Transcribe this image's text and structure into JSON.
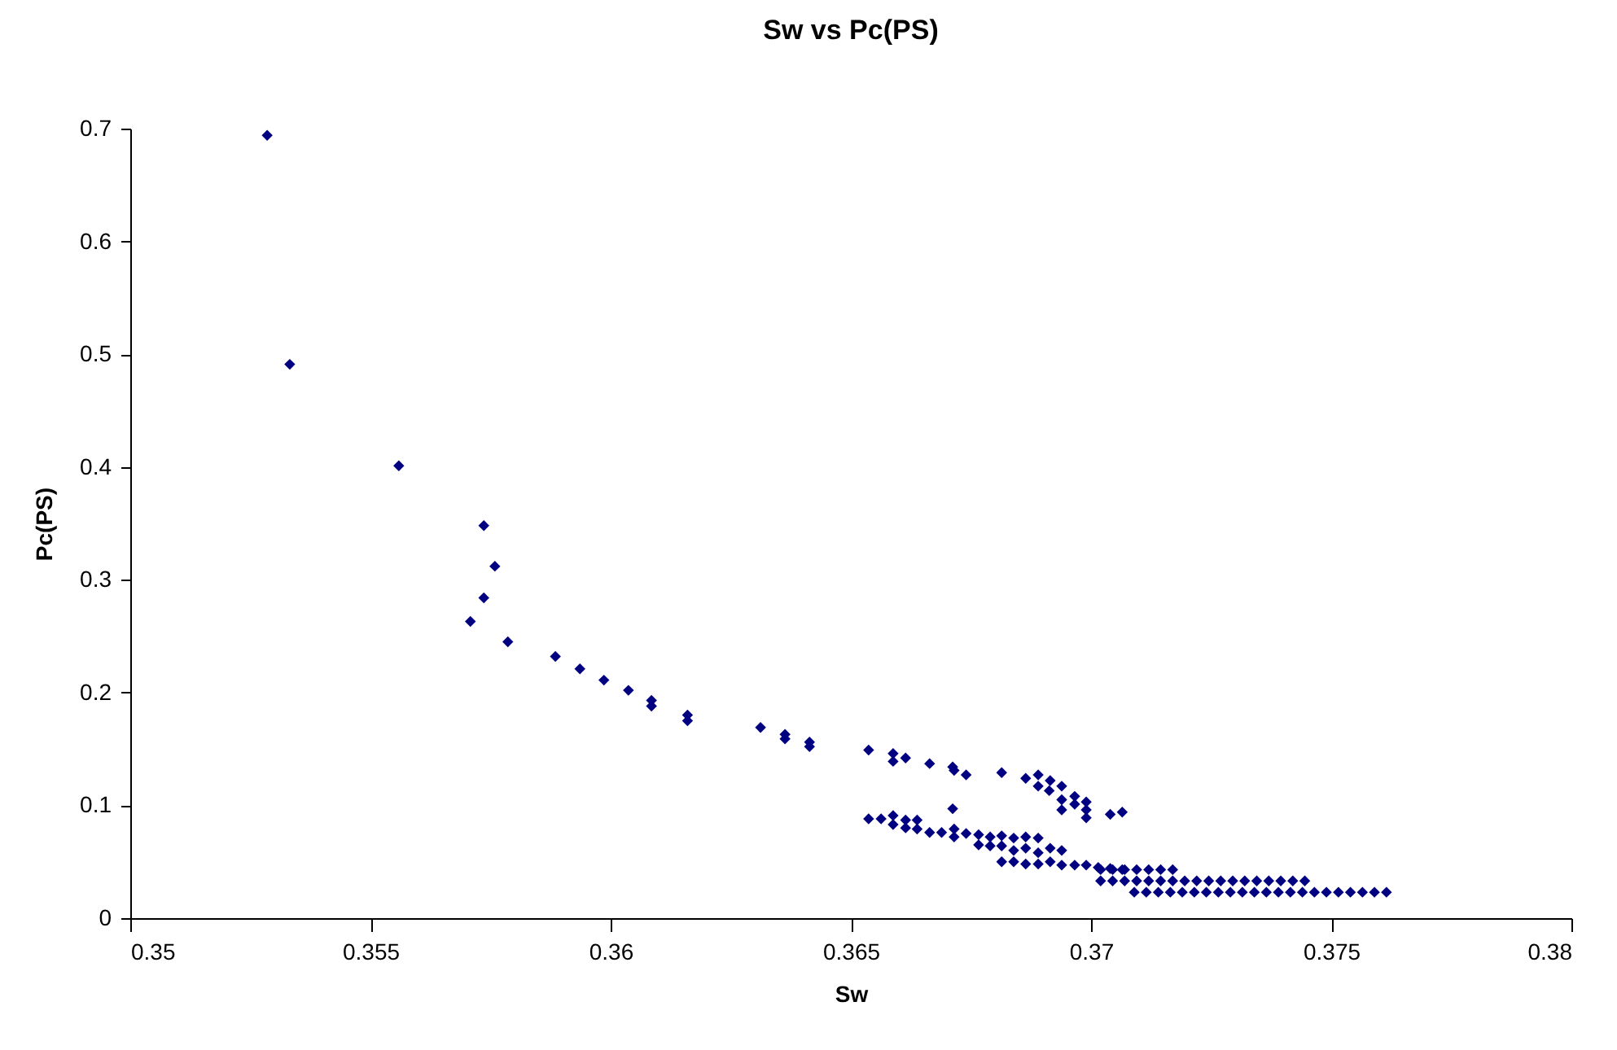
{
  "chart_data": {
    "type": "scatter",
    "title": "Sw vs Pc(PS)",
    "xlabel": "Sw",
    "ylabel": "Pc(PS)",
    "marker": "diamond",
    "legend": false,
    "grid": false,
    "xlim": [
      0.35,
      0.38
    ],
    "xticks": [
      0.35,
      0.355,
      0.36,
      0.365,
      0.37,
      0.375,
      0.38
    ],
    "ylim": [
      0,
      0.7
    ],
    "yticks": [
      0,
      0.1,
      0.2,
      0.3,
      0.4,
      0.5,
      0.6,
      0.7
    ],
    "series": [
      {
        "color": "#000080",
        "x": [
          0.35285,
          0.35332,
          0.35559,
          0.35736,
          0.35759,
          0.35736,
          0.35708,
          0.35786,
          0.35885,
          0.35936,
          0.35986,
          0.36037,
          0.36085,
          0.36085,
          0.3616,
          0.3616,
          0.36312,
          0.36363,
          0.36363,
          0.36414,
          0.36414,
          0.36537,
          0.36588,
          0.36588,
          0.36614,
          0.36664,
          0.36712,
          0.36715,
          0.3674,
          0.36814,
          0.36864,
          0.3689,
          0.3689,
          0.36915,
          0.36913,
          0.36939,
          0.36939,
          0.36939,
          0.36966,
          0.36966,
          0.3699,
          0.3699,
          0.3699,
          0.3704,
          0.37065,
          0.36712,
          0.36537,
          0.36563,
          0.36588,
          0.36588,
          0.36614,
          0.36614,
          0.36638,
          0.36638,
          0.36664,
          0.36689,
          0.36715,
          0.36715,
          0.3674,
          0.36766,
          0.36766,
          0.3679,
          0.3679,
          0.36814,
          0.36814,
          0.36814,
          0.36839,
          0.36839,
          0.36839,
          0.36864,
          0.36864,
          0.36864,
          0.3689,
          0.3689,
          0.3689,
          0.36915,
          0.36915,
          0.36939,
          0.36939,
          0.36966,
          0.3699,
          0.37015,
          0.3704,
          0.37065,
          0.3702,
          0.37045,
          0.3707,
          0.37095,
          0.3712,
          0.37145,
          0.3717,
          0.3702,
          0.37045,
          0.3707,
          0.37095,
          0.3712,
          0.37145,
          0.3717,
          0.37195,
          0.3722,
          0.37245,
          0.3727,
          0.37295,
          0.3732,
          0.37345,
          0.3737,
          0.37395,
          0.3742,
          0.37445,
          0.3709,
          0.37115,
          0.3714,
          0.37165,
          0.3719,
          0.37215,
          0.3724,
          0.37265,
          0.3729,
          0.37315,
          0.3734,
          0.37365,
          0.3739,
          0.37415,
          0.3744,
          0.37465,
          0.3749,
          0.37515,
          0.3754,
          0.37565,
          0.3759,
          0.37615
        ],
        "values": [
          0.694,
          0.491,
          0.401,
          0.348,
          0.312,
          0.284,
          0.263,
          0.245,
          0.232,
          0.221,
          0.211,
          0.202,
          0.193,
          0.188,
          0.18,
          0.175,
          0.169,
          0.163,
          0.159,
          0.156,
          0.152,
          0.149,
          0.146,
          0.139,
          0.142,
          0.137,
          0.134,
          0.131,
          0.127,
          0.129,
          0.124,
          0.127,
          0.117,
          0.122,
          0.113,
          0.117,
          0.105,
          0.096,
          0.108,
          0.101,
          0.103,
          0.096,
          0.089,
          0.092,
          0.094,
          0.097,
          0.088,
          0.088,
          0.091,
          0.083,
          0.087,
          0.08,
          0.087,
          0.079,
          0.076,
          0.076,
          0.079,
          0.072,
          0.075,
          0.074,
          0.065,
          0.072,
          0.064,
          0.073,
          0.064,
          0.05,
          0.071,
          0.06,
          0.05,
          0.072,
          0.062,
          0.048,
          0.071,
          0.058,
          0.048,
          0.062,
          0.05,
          0.06,
          0.047,
          0.047,
          0.047,
          0.045,
          0.044,
          0.043,
          0.043,
          0.043,
          0.043,
          0.043,
          0.043,
          0.043,
          0.043,
          0.033,
          0.033,
          0.033,
          0.033,
          0.033,
          0.033,
          0.033,
          0.033,
          0.033,
          0.033,
          0.033,
          0.033,
          0.033,
          0.033,
          0.033,
          0.033,
          0.033,
          0.033,
          0.023,
          0.023,
          0.023,
          0.023,
          0.023,
          0.023,
          0.023,
          0.023,
          0.023,
          0.023,
          0.023,
          0.023,
          0.023,
          0.023,
          0.023,
          0.023,
          0.023,
          0.023,
          0.023,
          0.023,
          0.023,
          0.023
        ]
      }
    ]
  }
}
